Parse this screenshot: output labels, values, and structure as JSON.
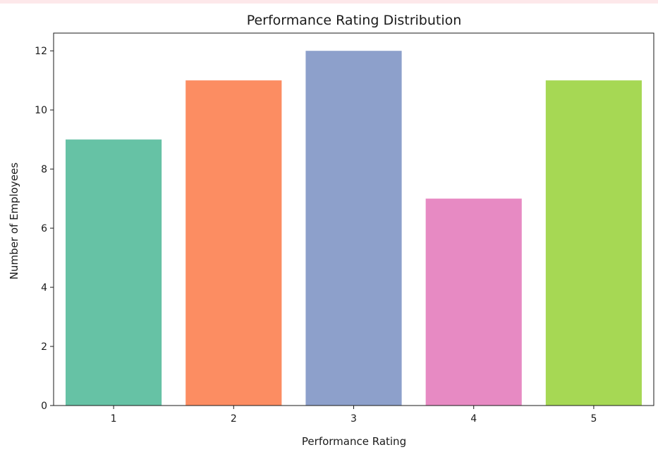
{
  "chart_data": {
    "type": "bar",
    "title": "Performance Rating Distribution",
    "xlabel": "Performance Rating",
    "ylabel": "Number of Employees",
    "categories": [
      "1",
      "2",
      "3",
      "4",
      "5"
    ],
    "values": [
      9,
      11,
      12,
      7,
      11
    ],
    "colors": [
      "#66c2a5",
      "#fc8d62",
      "#8da0cb",
      "#e78ac3",
      "#a6d854"
    ],
    "ylim": [
      0,
      12.6
    ],
    "yticks": [
      0,
      2,
      4,
      6,
      8,
      10,
      12
    ],
    "grid": false
  }
}
